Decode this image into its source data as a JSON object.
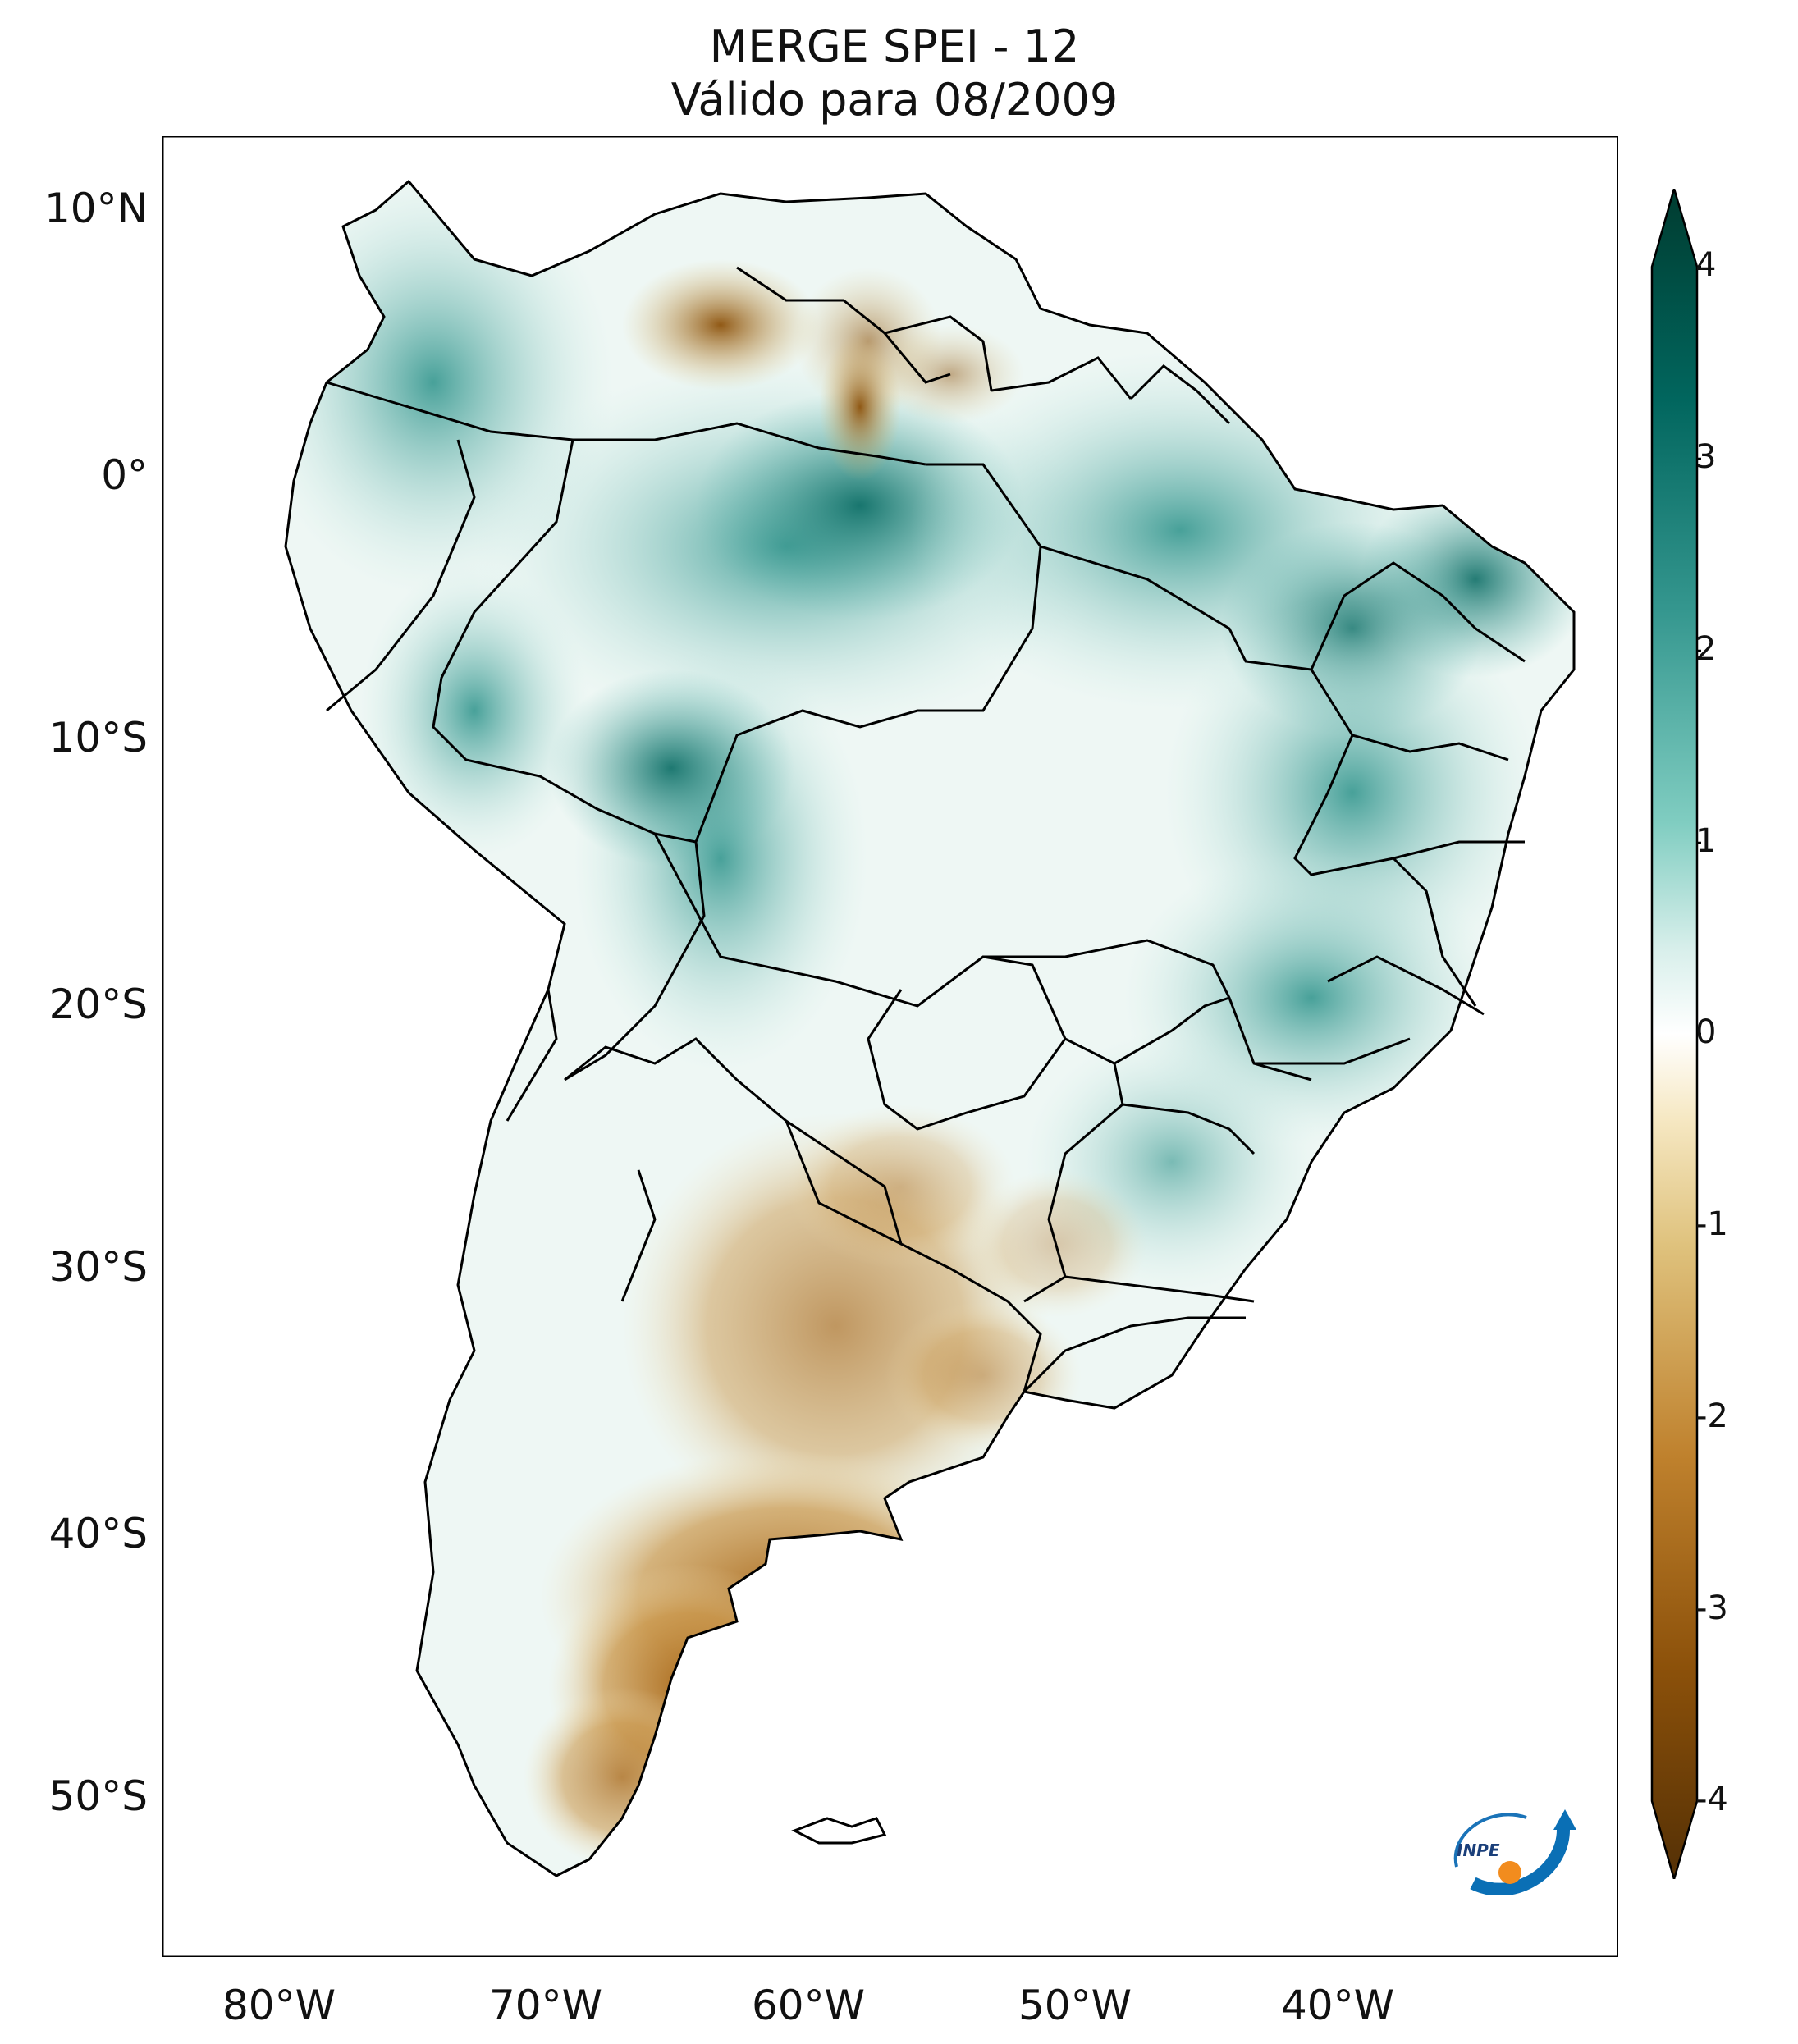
{
  "title": {
    "line1": "MERGE   SPEI - 12",
    "line2": "Válido para 08/2009"
  },
  "map": {
    "region": "South America",
    "lat_labels": [
      "10°N",
      "0°",
      "10°S",
      "20°S",
      "30°S",
      "40°S",
      "50°S"
    ],
    "lon_labels": [
      "80°W",
      "70°W",
      "60°W",
      "50°W",
      "40°W"
    ],
    "colors": {
      "drought": "#8c510a",
      "neutral": "#f7f7f7",
      "wet": "#01665e",
      "outline": "#000000"
    }
  },
  "colorbar": {
    "ticks": [
      "4",
      "3",
      "2",
      "1",
      "0",
      "-1",
      "-2",
      "-3",
      "-4"
    ],
    "min": -4,
    "max": 4
  },
  "logo": {
    "text": "INPE"
  }
}
